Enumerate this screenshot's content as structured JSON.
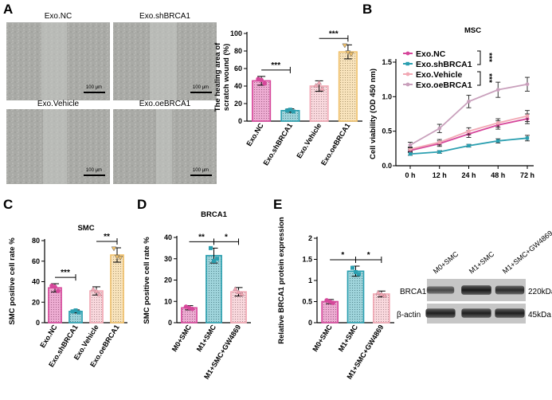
{
  "panels": {
    "A": {
      "letter": "A",
      "micrographs": [
        {
          "label": "Exo.NC",
          "scale_label": "100 μm"
        },
        {
          "label": "Exo.shBRCA1",
          "scale_label": "100 μm"
        },
        {
          "label": "Exo.Vehicle",
          "scale_label": "100 μm"
        },
        {
          "label": "Exo.oeBRCA1",
          "scale_label": "100 μm"
        }
      ]
    },
    "B": {
      "letter": "B"
    },
    "C": {
      "letter": "C"
    },
    "D": {
      "letter": "D"
    },
    "E": {
      "letter": "E"
    }
  },
  "western_blot": {
    "lanes": [
      "M0+SMC",
      "M1+SMC",
      "M1+SMC+GW4869"
    ],
    "rows": [
      {
        "label": "BRCA1",
        "size": "220kDa",
        "intensity": [
          0.55,
          0.95,
          0.8
        ]
      },
      {
        "label": "β-actin",
        "size": "45kDa",
        "intensity": [
          0.9,
          0.9,
          0.9
        ]
      }
    ]
  },
  "chart_data": [
    {
      "panel": "A",
      "type": "bar",
      "title": "",
      "ylabel": "The healing area of scratch wound (%)",
      "categories": [
        "Exo.NC",
        "Exo.shBRCA1",
        "Exo.Vehicle",
        "Exo.oeBRCA1"
      ],
      "values": [
        46,
        12,
        40,
        79
      ],
      "errors": [
        5,
        2,
        6,
        8
      ],
      "points": [
        [
          48,
          43,
          47
        ],
        [
          12,
          11,
          13
        ],
        [
          41,
          37,
          44
        ],
        [
          86,
          76,
          78
        ]
      ],
      "ylim": [
        0,
        100
      ],
      "yticks": [
        0,
        20,
        40,
        60,
        80,
        100
      ],
      "colors": [
        "#d6479b",
        "#2a9fb0",
        "#f2a8b4",
        "#f0c06a"
      ],
      "significance": [
        {
          "from": 0,
          "to": 1,
          "label": "***"
        },
        {
          "from": 2,
          "to": 3,
          "label": "***"
        }
      ]
    },
    {
      "panel": "B",
      "type": "line",
      "title": "MSC",
      "xlabel": "",
      "ylabel": "Cell viability (OD 450 nm)",
      "x": [
        "0 h",
        "12 h",
        "24 h",
        "48 h",
        "72 h"
      ],
      "ylim": [
        0,
        1.5
      ],
      "yticks": [
        0.0,
        0.5,
        1.0,
        1.5
      ],
      "series": [
        {
          "name": "Exo.NC",
          "color": "#d6479b",
          "values": [
            0.22,
            0.32,
            0.46,
            0.59,
            0.68
          ],
          "errors": [
            0.02,
            0.04,
            0.05,
            0.06,
            0.07
          ]
        },
        {
          "name": "Exo.shBRCA1",
          "color": "#2a9fb0",
          "values": [
            0.17,
            0.2,
            0.29,
            0.36,
            0.4
          ],
          "errors": [
            0.02,
            0.02,
            0.02,
            0.03,
            0.04
          ]
        },
        {
          "name": "Exo.Vehicle",
          "color": "#f2a8b4",
          "values": [
            0.24,
            0.34,
            0.5,
            0.62,
            0.72
          ],
          "errors": [
            0.03,
            0.04,
            0.05,
            0.06,
            0.08
          ]
        },
        {
          "name": "Exo.oeBRCA1",
          "color": "#c9a0bc",
          "values": [
            0.3,
            0.54,
            0.93,
            1.1,
            1.18
          ],
          "errors": [
            0.04,
            0.06,
            0.09,
            0.11,
            0.1
          ]
        }
      ],
      "significance": [
        {
          "label": "***"
        },
        {
          "label": "***"
        }
      ],
      "legend": "top-left"
    },
    {
      "panel": "C",
      "type": "bar",
      "title": "SMC",
      "ylabel": "SMC positive cell rate %",
      "categories": [
        "Exo.NC",
        "Exo.shBRCA1",
        "Exo.Vehicle",
        "Exo.oeBRCA1"
      ],
      "values": [
        34,
        11,
        31,
        66
      ],
      "errors": [
        4,
        1.5,
        4,
        7
      ],
      "points": [
        [
          36,
          31,
          35
        ],
        [
          11,
          10,
          12
        ],
        [
          33,
          28,
          31
        ],
        [
          72,
          63,
          64
        ]
      ],
      "ylim": [
        0,
        80
      ],
      "yticks": [
        0,
        20,
        40,
        60,
        80
      ],
      "colors": [
        "#d6479b",
        "#2a9fb0",
        "#f2a8b4",
        "#f0c06a"
      ],
      "significance": [
        {
          "from": 0,
          "to": 1,
          "label": "***"
        },
        {
          "from": 2,
          "to": 3,
          "label": "**"
        }
      ]
    },
    {
      "panel": "D",
      "type": "bar",
      "title": "BRCA1",
      "ylabel": "SMC positive cell rate %",
      "categories": [
        "M0+SMC",
        "M1+SMC",
        "M1+SMC+GW4869"
      ],
      "values": [
        7,
        31.5,
        14.5
      ],
      "errors": [
        1,
        3.5,
        2
      ],
      "points": [
        [
          7.5,
          6.5,
          7
        ],
        [
          35,
          30,
          29
        ],
        [
          16,
          13.5,
          14.5
        ]
      ],
      "ylim": [
        0,
        40
      ],
      "yticks": [
        0,
        10,
        20,
        30,
        40
      ],
      "colors": [
        "#d6479b",
        "#2a9fb0",
        "#f2a8b4"
      ],
      "significance": [
        {
          "from": 0,
          "to": 1,
          "label": "**"
        },
        {
          "from": 1,
          "to": 2,
          "label": "*"
        }
      ]
    },
    {
      "panel": "E",
      "type": "bar",
      "title": "",
      "ylabel": "Relative BRCA1 protein expression",
      "categories": [
        "M0+SMC",
        "M1+SMC",
        "M1+SMC+GW4869"
      ],
      "values": [
        0.5,
        1.22,
        0.68
      ],
      "errors": [
        0.05,
        0.12,
        0.07
      ],
      "points": [
        [
          0.53,
          0.47,
          0.5
        ],
        [
          1.3,
          1.15,
          1.2
        ],
        [
          0.72,
          0.65,
          0.68
        ]
      ],
      "ylim": [
        0,
        2.0
      ],
      "yticks": [
        0.0,
        0.5,
        1.0,
        1.5,
        2.0
      ],
      "colors": [
        "#d6479b",
        "#2a9fb0",
        "#f2a8b4"
      ],
      "significance": [
        {
          "from": 0,
          "to": 1,
          "label": "*"
        },
        {
          "from": 1,
          "to": 2,
          "label": "*"
        }
      ]
    }
  ]
}
